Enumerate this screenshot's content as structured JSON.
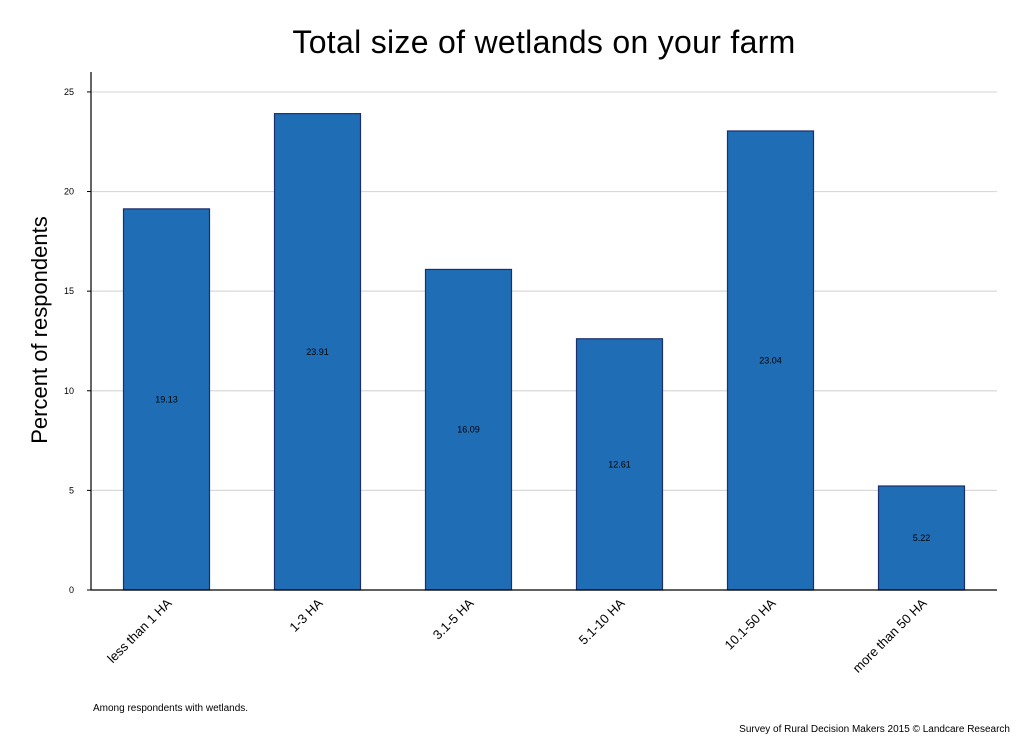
{
  "chart_data": {
    "type": "bar",
    "title": "Total size of wetlands on your farm",
    "xlabel": "",
    "ylabel": "Percent of respondents",
    "categories": [
      "less than 1 HA",
      "1-3 HA",
      "3.1-5 HA",
      "5.1-10 HA",
      "10.1-50 HA",
      "more than 50 HA"
    ],
    "values": [
      19.13,
      23.91,
      16.09,
      12.61,
      23.04,
      5.22
    ],
    "value_labels": [
      "19.13",
      "23.91",
      "16.09",
      "12.61",
      "23.04",
      "5.22"
    ],
    "ylim": [
      0,
      26
    ],
    "yticks": [
      0,
      5,
      10,
      15,
      20,
      25
    ],
    "ytick_labels": [
      "0",
      "5",
      "10",
      "15",
      "20",
      "25"
    ],
    "grid": true,
    "legend": "none",
    "bar_color": "#1f6db5",
    "bar_edge_color": "#1a2f6b"
  },
  "footnote": "Among respondents with wetlands.",
  "credit": "Survey of Rural Decision Makers 2015 © Landcare Research"
}
